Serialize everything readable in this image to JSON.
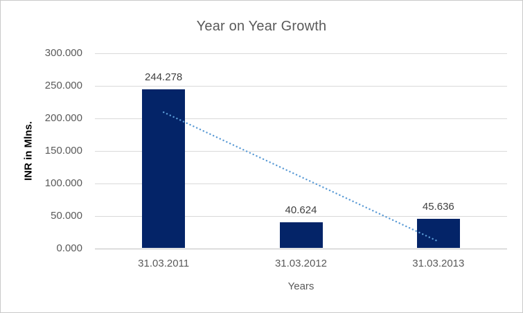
{
  "chart_data": {
    "type": "bar",
    "title": "Year on Year Growth",
    "categories": [
      "31.03.2011",
      "31.03.2012",
      "31.03.2013"
    ],
    "values": [
      244.278,
      40.624,
      45.636
    ],
    "data_labels": [
      "244.278",
      "40.624",
      "45.636"
    ],
    "xlabel": "Years",
    "ylabel": "INR in Mlns.",
    "ylim": [
      0,
      300
    ],
    "ytick_labels": [
      "300.000",
      "250.000",
      "200.000",
      "150.000",
      "100.000",
      "50.000",
      "0.000"
    ],
    "ytick_values": [
      300,
      250,
      200,
      150,
      100,
      50,
      0
    ],
    "grid": "horizontal-on",
    "legend": "none",
    "trendline": {
      "type": "linear",
      "style": "dotted",
      "start_value": 209.5,
      "end_value": 10.9
    },
    "colors": {
      "bar": "#042468",
      "trendline": "#5b9bd5",
      "title_text": "#595959",
      "axis_text": "#595959",
      "data_label_text": "#404040",
      "y_axis_title_text": "#000000",
      "gridline": "#d9d9d9",
      "axis_line": "#bfbfbf",
      "background": "#ffffff"
    }
  }
}
